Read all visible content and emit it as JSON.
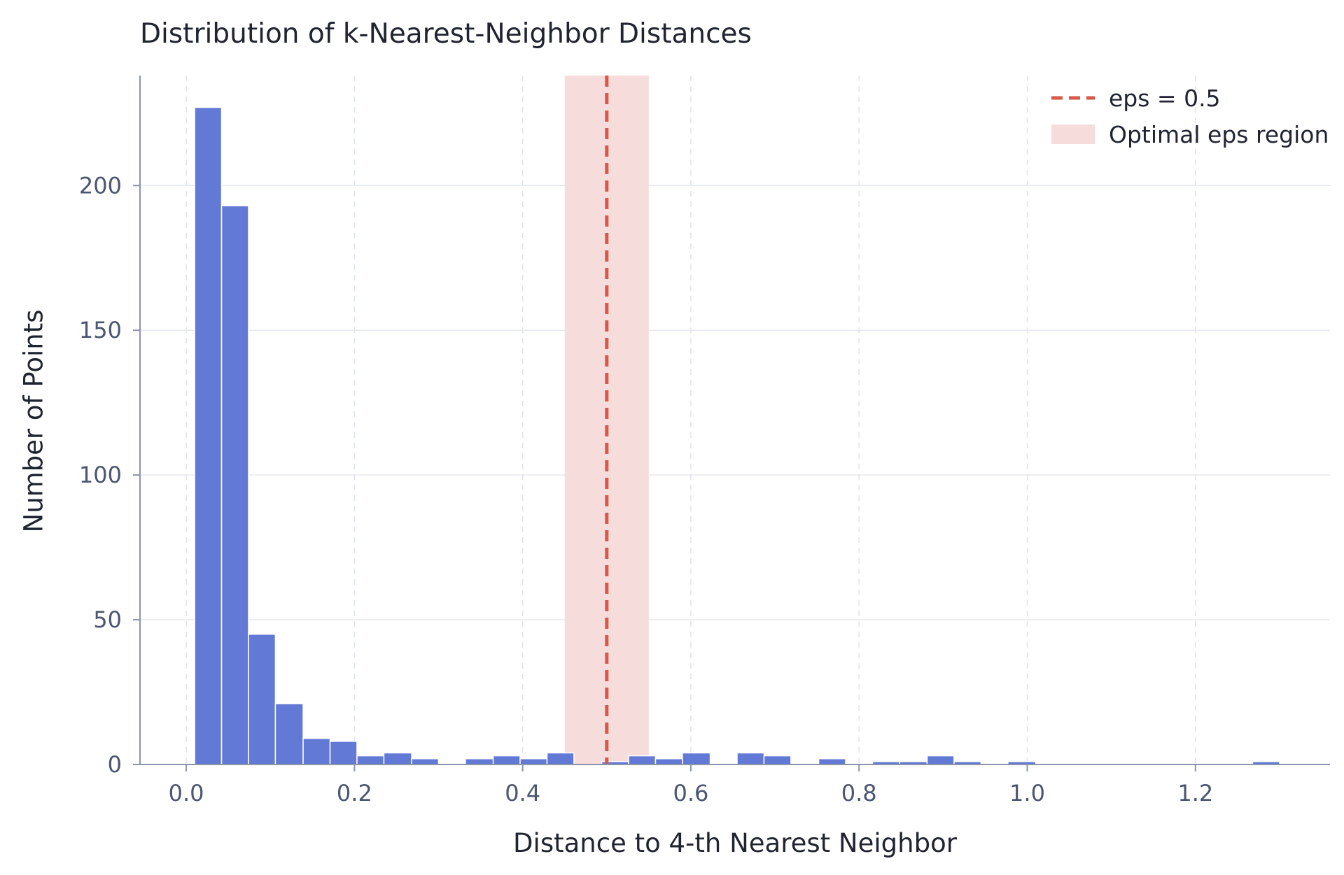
{
  "chart_data": {
    "type": "bar",
    "title": "Distribution of k-Nearest-Neighbor Distances",
    "xlabel": "Distance to 4-th Nearest Neighbor",
    "ylabel": "Number of Points",
    "xlim": [
      -0.055,
      1.36
    ],
    "ylim": [
      0,
      238
    ],
    "xticks": [
      0.0,
      0.2,
      0.4,
      0.6,
      0.8,
      1.0,
      1.2
    ],
    "xtick_labels": [
      "0.0",
      "0.2",
      "0.4",
      "0.6",
      "0.8",
      "1.0",
      "1.2"
    ],
    "yticks": [
      0,
      50,
      100,
      150,
      200
    ],
    "ytick_labels": [
      "0",
      "50",
      "100",
      "150",
      "200"
    ],
    "grid": true,
    "bar_color": "#6279d6",
    "eps_line": {
      "x": 0.5,
      "label": "eps = 0.5",
      "color": "#d9584a"
    },
    "eps_region": {
      "x_start": 0.45,
      "x_end": 0.55,
      "label": "Optimal eps region",
      "color": "#f7dcdc"
    },
    "legend_position": "top-right",
    "bins": [
      {
        "x0": 0.01,
        "x1": 0.042,
        "count": 227
      },
      {
        "x0": 0.042,
        "x1": 0.074,
        "count": 193
      },
      {
        "x0": 0.074,
        "x1": 0.106,
        "count": 45
      },
      {
        "x0": 0.106,
        "x1": 0.139,
        "count": 21
      },
      {
        "x0": 0.139,
        "x1": 0.171,
        "count": 9
      },
      {
        "x0": 0.171,
        "x1": 0.203,
        "count": 8
      },
      {
        "x0": 0.203,
        "x1": 0.235,
        "count": 3
      },
      {
        "x0": 0.235,
        "x1": 0.268,
        "count": 4
      },
      {
        "x0": 0.268,
        "x1": 0.3,
        "count": 2
      },
      {
        "x0": 0.3,
        "x1": 0.332,
        "count": 0
      },
      {
        "x0": 0.332,
        "x1": 0.365,
        "count": 2
      },
      {
        "x0": 0.365,
        "x1": 0.397,
        "count": 3
      },
      {
        "x0": 0.397,
        "x1": 0.429,
        "count": 2
      },
      {
        "x0": 0.429,
        "x1": 0.461,
        "count": 4
      },
      {
        "x0": 0.461,
        "x1": 0.494,
        "count": 0
      },
      {
        "x0": 0.494,
        "x1": 0.526,
        "count": 1
      },
      {
        "x0": 0.526,
        "x1": 0.558,
        "count": 3
      },
      {
        "x0": 0.558,
        "x1": 0.59,
        "count": 2
      },
      {
        "x0": 0.59,
        "x1": 0.623,
        "count": 4
      },
      {
        "x0": 0.623,
        "x1": 0.655,
        "count": 0
      },
      {
        "x0": 0.655,
        "x1": 0.687,
        "count": 4
      },
      {
        "x0": 0.687,
        "x1": 0.719,
        "count": 3
      },
      {
        "x0": 0.719,
        "x1": 0.752,
        "count": 0
      },
      {
        "x0": 0.752,
        "x1": 0.784,
        "count": 2
      },
      {
        "x0": 0.784,
        "x1": 0.816,
        "count": 0
      },
      {
        "x0": 0.816,
        "x1": 0.848,
        "count": 1
      },
      {
        "x0": 0.848,
        "x1": 0.881,
        "count": 1
      },
      {
        "x0": 0.881,
        "x1": 0.913,
        "count": 3
      },
      {
        "x0": 0.913,
        "x1": 0.945,
        "count": 1
      },
      {
        "x0": 0.945,
        "x1": 0.977,
        "count": 0
      },
      {
        "x0": 0.977,
        "x1": 1.01,
        "count": 1
      },
      {
        "x0": 1.01,
        "x1": 1.042,
        "count": 0
      },
      {
        "x0": 1.042,
        "x1": 1.074,
        "count": 0
      },
      {
        "x0": 1.074,
        "x1": 1.106,
        "count": 0
      },
      {
        "x0": 1.106,
        "x1": 1.139,
        "count": 0
      },
      {
        "x0": 1.139,
        "x1": 1.171,
        "count": 0
      },
      {
        "x0": 1.171,
        "x1": 1.203,
        "count": 0
      },
      {
        "x0": 1.203,
        "x1": 1.235,
        "count": 0
      },
      {
        "x0": 1.235,
        "x1": 1.268,
        "count": 0
      },
      {
        "x0": 1.268,
        "x1": 1.3,
        "count": 1
      }
    ]
  }
}
